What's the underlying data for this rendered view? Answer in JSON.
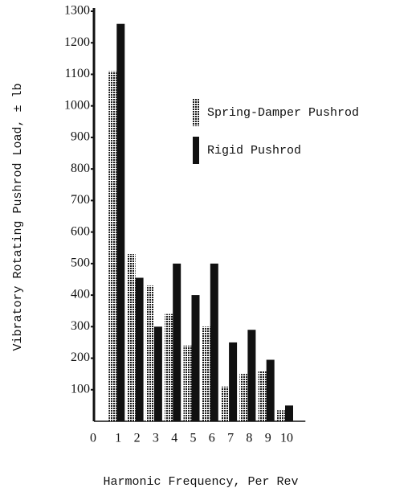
{
  "chart_data": {
    "type": "bar",
    "x_label": "Harmonic Frequency, Per Rev",
    "y_label": "Vibratory Rotating Pushrod Load, ± lb",
    "categories": [
      0,
      1,
      2,
      3,
      4,
      5,
      6,
      7,
      8,
      9,
      10
    ],
    "series": [
      {
        "name": "Spring-Damper Pushrod",
        "color": "#1a1a1a",
        "pattern": "dotted",
        "values": [
          null,
          1110,
          530,
          430,
          340,
          240,
          300,
          110,
          150,
          160,
          35
        ]
      },
      {
        "name": "Rigid Pushrod",
        "color": "#111111",
        "pattern": "solid",
        "values": [
          null,
          1260,
          455,
          300,
          500,
          400,
          500,
          250,
          290,
          195,
          50
        ]
      }
    ],
    "ylim": [
      0,
      1300
    ],
    "yticks": [
      100,
      200,
      300,
      400,
      500,
      600,
      700,
      800,
      900,
      1000,
      1100,
      1200,
      1300
    ],
    "grid": false
  }
}
